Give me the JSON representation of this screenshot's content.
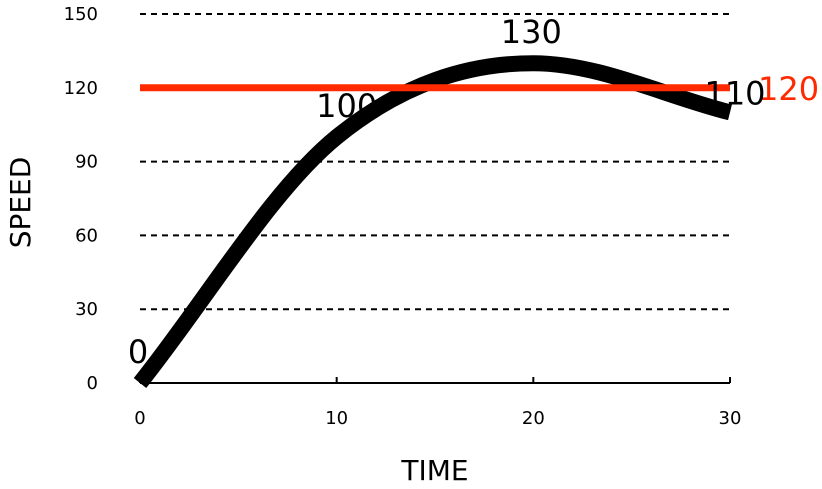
{
  "chart_data": {
    "type": "line",
    "title": "",
    "xlabel": "TIME",
    "ylabel": "SPEED",
    "xlim": [
      0,
      30
    ],
    "ylim": [
      0,
      150
    ],
    "x_ticks": [
      0,
      10,
      20,
      30
    ],
    "y_ticks": [
      0,
      30,
      60,
      90,
      120,
      150
    ],
    "grid": "horizontal-dashed",
    "series": [
      {
        "color": "#000000",
        "points": [
          [
            0,
            0
          ],
          [
            10,
            100
          ],
          [
            20,
            130
          ],
          [
            30,
            110
          ]
        ],
        "point_labels": [
          "0",
          "100",
          "130",
          "110"
        ]
      }
    ],
    "reference_line": {
      "y": 120,
      "label": "120",
      "color": "#ff2a00"
    }
  }
}
